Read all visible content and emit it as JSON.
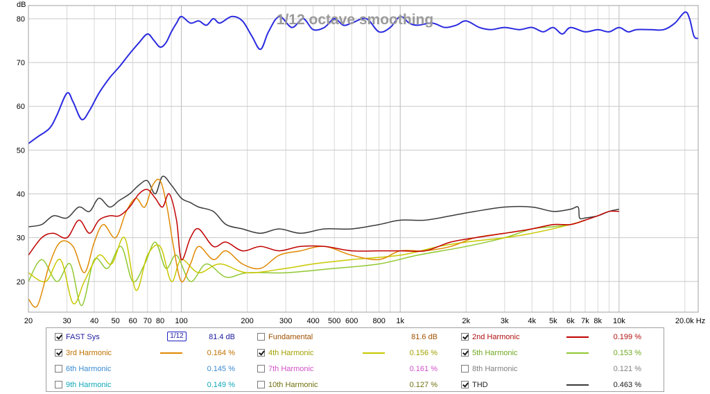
{
  "chart_data": {
    "type": "line",
    "title": "1/12 octave smoothing",
    "ylabel": "dB",
    "xunit": "Hz",
    "xscale": "log",
    "xlim": [
      20,
      23000
    ],
    "ylim": [
      13,
      83
    ],
    "grid": true,
    "legend_position": "bottom",
    "y_ticks": [
      20,
      30,
      40,
      50,
      60,
      70,
      80
    ],
    "x_ticks": [
      {
        "v": 20,
        "l": "20"
      },
      {
        "v": 30,
        "l": "30"
      },
      {
        "v": 40,
        "l": "40"
      },
      {
        "v": 50,
        "l": "50"
      },
      {
        "v": 60,
        "l": "60"
      },
      {
        "v": 70,
        "l": "70"
      },
      {
        "v": 80,
        "l": "80"
      },
      {
        "v": 100,
        "l": "100"
      },
      {
        "v": 200,
        "l": "200"
      },
      {
        "v": 300,
        "l": "300"
      },
      {
        "v": 400,
        "l": "400"
      },
      {
        "v": 500,
        "l": "500"
      },
      {
        "v": 600,
        "l": "600"
      },
      {
        "v": 800,
        "l": "800"
      },
      {
        "v": 1000,
        "l": "1k"
      },
      {
        "v": 2000,
        "l": "2k"
      },
      {
        "v": 3000,
        "l": "3k"
      },
      {
        "v": 4000,
        "l": "4k"
      },
      {
        "v": 5000,
        "l": "5k"
      },
      {
        "v": 6000,
        "l": "6k"
      },
      {
        "v": 7000,
        "l": "7k"
      },
      {
        "v": 8000,
        "l": "8k"
      },
      {
        "v": 10000,
        "l": "10k"
      },
      {
        "v": 20000,
        "l": "20.0k Hz"
      }
    ],
    "series": [
      {
        "name": "FAST Sys",
        "color": "#2a2ae0",
        "width": 2,
        "x": [
          20,
          22,
          25,
          27,
          30,
          32,
          35,
          38,
          42,
          47,
          52,
          58,
          64,
          70,
          75,
          80,
          85,
          90,
          95,
          100,
          110,
          120,
          130,
          140,
          150,
          170,
          190,
          210,
          230,
          250,
          280,
          320,
          360,
          400,
          450,
          500,
          550,
          600,
          700,
          800,
          900,
          1000,
          1100,
          1200,
          1400,
          1600,
          1800,
          2000,
          2300,
          2600,
          3000,
          3500,
          4000,
          4500,
          5000,
          5500,
          6000,
          7000,
          8000,
          9000,
          10000,
          11000,
          12000,
          14000,
          16000,
          18000,
          20000,
          21000,
          22000,
          23000
        ],
        "y": [
          51.5,
          53,
          55,
          58,
          63,
          61,
          57,
          59,
          63,
          66.5,
          69,
          72,
          74.5,
          76.5,
          75,
          73.5,
          74.5,
          77,
          79,
          80.5,
          79,
          79.5,
          78.5,
          80,
          79,
          80.5,
          79.5,
          76,
          73,
          77,
          80.5,
          78,
          80,
          77.5,
          78,
          80,
          78.5,
          79,
          80,
          77,
          78,
          80.5,
          79,
          78.5,
          79,
          78,
          78.5,
          79.5,
          78,
          77.5,
          78,
          77.5,
          78,
          77,
          78,
          76.5,
          78,
          77,
          77.5,
          77,
          78,
          77,
          77.5,
          77.5,
          77.5,
          79,
          81.5,
          80,
          76,
          75.5
        ]
      },
      {
        "name": "2nd Harmonic",
        "color": "#c00000",
        "width": 1.5,
        "x": [
          20,
          23,
          26,
          30,
          34,
          38,
          42,
          47,
          52,
          58,
          64,
          70,
          76,
          82,
          88,
          95,
          100,
          110,
          120,
          140,
          160,
          190,
          230,
          280,
          350,
          450,
          600,
          800,
          1000,
          1300,
          1700,
          2200,
          3000,
          4000,
          5000,
          6000,
          7000,
          8000,
          9000,
          10000
        ],
        "y": [
          26,
          30,
          31,
          30,
          34,
          31,
          34,
          35,
          35,
          37,
          40,
          41,
          39,
          37,
          40,
          34,
          25,
          30,
          32,
          28,
          29,
          27,
          28,
          27,
          28,
          28,
          27,
          27,
          27,
          27,
          29,
          30,
          31,
          32,
          33,
          33,
          34,
          35,
          36,
          36
        ]
      },
      {
        "name": "3rd Harmonic",
        "color": "#e08800",
        "width": 1.5,
        "x": [
          20,
          22,
          25,
          28,
          32,
          36,
          40,
          44,
          50,
          56,
          62,
          68,
          74,
          80,
          86,
          92,
          100,
          110,
          120,
          140,
          160,
          190,
          230,
          280,
          350,
          450,
          600,
          800,
          1000,
          1300,
          1700,
          2200,
          3000,
          4000,
          5000,
          6000,
          7000
        ],
        "y": [
          16,
          14.5,
          24,
          29,
          28,
          22,
          29,
          33,
          30,
          36,
          39,
          37,
          42,
          43,
          37,
          28,
          20,
          24,
          28,
          25,
          27,
          24,
          23,
          26,
          27,
          28,
          26,
          25,
          27,
          27,
          28,
          30,
          31,
          32,
          33,
          33,
          34
        ]
      },
      {
        "name": "4th Harmonic",
        "color": "#c8c800",
        "width": 1.5,
        "x": [
          20,
          24,
          28,
          32,
          36,
          42,
          48,
          55,
          62,
          70,
          80,
          90,
          100,
          120,
          150,
          200,
          300,
          400,
          600,
          1000,
          1500,
          2000,
          3000,
          4000,
          6000,
          7000
        ],
        "y": [
          22,
          20,
          25,
          15,
          20,
          26,
          24,
          30,
          18,
          26,
          28,
          20,
          25,
          22,
          24,
          22,
          23,
          24,
          25,
          26,
          28,
          29,
          30,
          31,
          33,
          34
        ]
      },
      {
        "name": "5th Harmonic",
        "color": "#90c830",
        "width": 1.5,
        "x": [
          20,
          23,
          27,
          31,
          35,
          40,
          46,
          53,
          60,
          68,
          76,
          85,
          95,
          110,
          130,
          160,
          200,
          300,
          500,
          800,
          1200,
          2000,
          3000,
          4000,
          5000,
          6000,
          7000
        ],
        "y": [
          20,
          25,
          20,
          24,
          14.5,
          25,
          23,
          28,
          20,
          24,
          29,
          23,
          26,
          20,
          24,
          21,
          22,
          22,
          23,
          24,
          26,
          28,
          30,
          32,
          32.5,
          33,
          34
        ]
      },
      {
        "name": "THD",
        "color": "#3a3a3a",
        "width": 1.5,
        "x": [
          20,
          23,
          26,
          30,
          34,
          38,
          42,
          47,
          52,
          58,
          64,
          70,
          76,
          82,
          90,
          100,
          110,
          120,
          140,
          160,
          190,
          230,
          280,
          350,
          450,
          600,
          800,
          1000,
          1300,
          1700,
          2200,
          3000,
          4000,
          5000,
          6000,
          6500,
          6600,
          7000,
          8000,
          9000,
          10000
        ],
        "y": [
          32.5,
          33,
          35,
          34.5,
          37,
          36,
          39,
          37,
          38.5,
          40,
          42,
          43,
          40,
          44,
          42,
          39,
          38,
          37,
          36,
          33,
          32,
          31,
          32,
          31,
          32,
          32,
          33,
          34,
          34,
          35,
          36,
          37,
          37,
          36,
          36.5,
          37,
          34.5,
          34.5,
          35,
          36,
          36.5
        ]
      }
    ]
  },
  "legend": {
    "rows": [
      [
        {
          "checked": true,
          "label": "FAST Sys",
          "value": "81.4 dB",
          "color": "#1a1aa0",
          "valueColor": "#1a1aa0",
          "swatch": "",
          "smoothing": "1/12"
        },
        {
          "checked": false,
          "label": "Fundamental",
          "value": "81.6 dB",
          "color": "#a05000",
          "valueColor": "#a05000",
          "swatch": ""
        },
        {
          "checked": true,
          "label": "2nd Harmonic",
          "value": "0.199 %",
          "color": "#b01010",
          "valueColor": "#b01010",
          "swatch": "#c00000"
        }
      ],
      [
        {
          "checked": true,
          "label": "3rd Harmonic",
          "value": "0.164 %",
          "color": "#c07000",
          "valueColor": "#c07000",
          "swatch": "#e08800"
        },
        {
          "checked": true,
          "label": "4th Harmonic",
          "value": "0.156 %",
          "color": "#a0a000",
          "valueColor": "#a0a000",
          "swatch": "#c8c800"
        },
        {
          "checked": true,
          "label": "5th Harmonic",
          "value": "0.153 %",
          "color": "#70a820",
          "valueColor": "#70a820",
          "swatch": "#90c830"
        }
      ],
      [
        {
          "checked": false,
          "label": "6th Harmonic",
          "value": "0.145 %",
          "color": "#3a8ad0",
          "valueColor": "#3a8ad0",
          "swatch": ""
        },
        {
          "checked": false,
          "label": "7th Harmonic",
          "value": "0.161 %",
          "color": "#d050c8",
          "valueColor": "#d050c8",
          "swatch": ""
        },
        {
          "checked": false,
          "label": "8th Harmonic",
          "value": "0.121 %",
          "color": "#808080",
          "valueColor": "#808080",
          "swatch": ""
        }
      ],
      [
        {
          "checked": false,
          "label": "9th Harmonic",
          "value": "0.149 %",
          "color": "#10a8b8",
          "valueColor": "#10a8b8",
          "swatch": ""
        },
        {
          "checked": false,
          "label": "10th Harmonic",
          "value": "0.127 %",
          "color": "#707010",
          "valueColor": "#707010",
          "swatch": ""
        },
        {
          "checked": true,
          "label": "THD",
          "value": "0.463 %",
          "color": "#202020",
          "valueColor": "#202020",
          "swatch": "#3a3a3a"
        }
      ]
    ]
  }
}
